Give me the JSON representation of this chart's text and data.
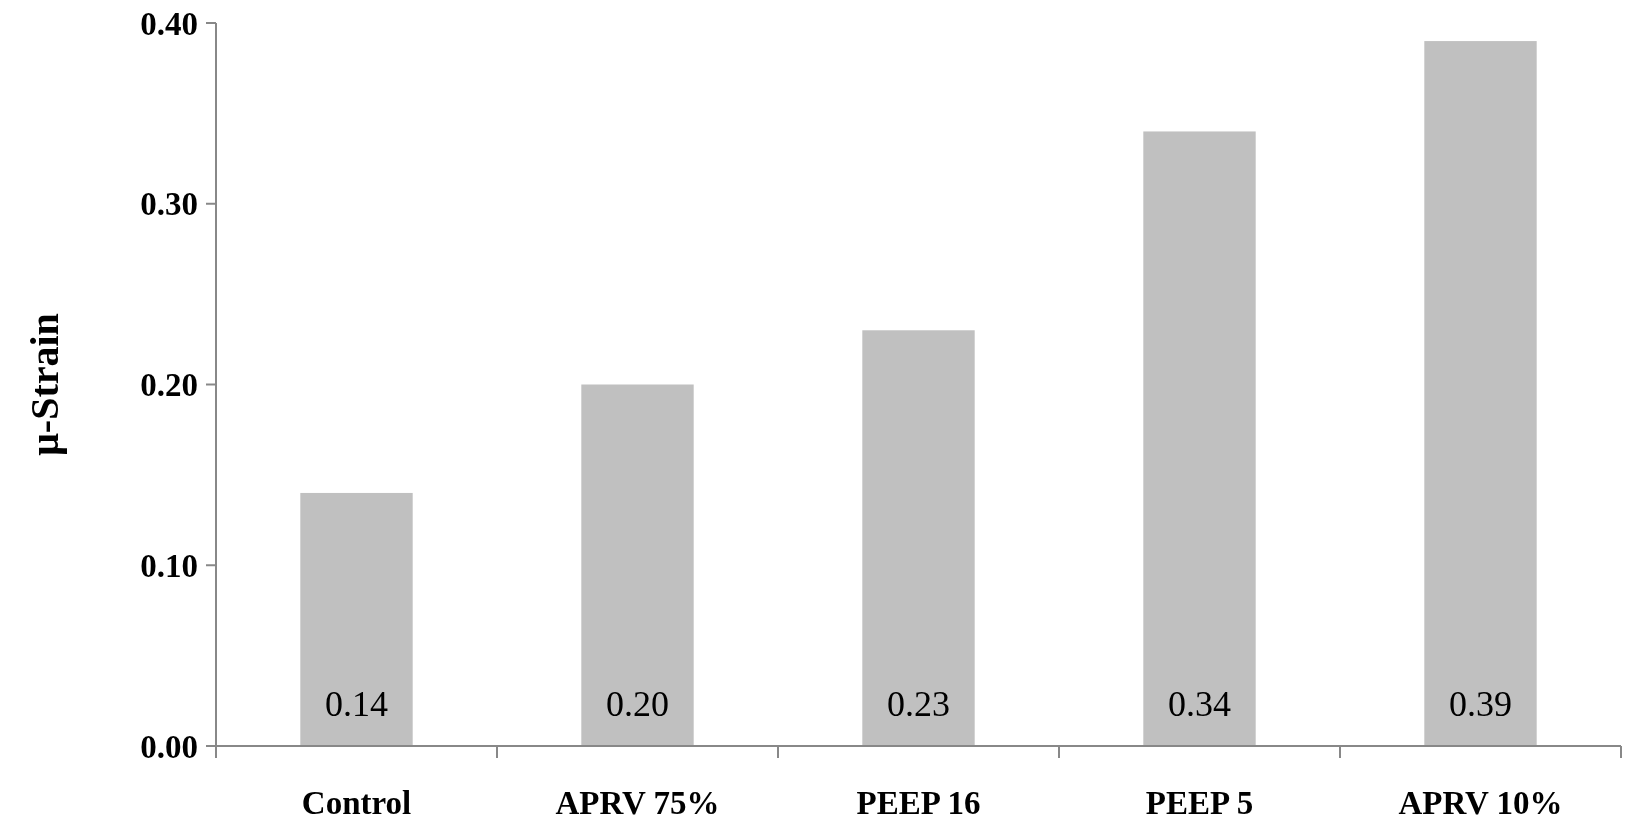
{
  "chart_data": {
    "type": "bar",
    "ylabel": "μ-Strain",
    "categories": [
      "Control",
      "APRV 75%",
      "PEEP 16",
      "PEEP 5",
      "APRV 10%"
    ],
    "values": [
      0.14,
      0.2,
      0.23,
      0.34,
      0.39
    ],
    "value_labels": [
      "0.14",
      "0.20",
      "0.23",
      "0.34",
      "0.39"
    ],
    "color": "#c0c0c0",
    "ylim": [
      0,
      0.4
    ],
    "yticks": [
      {
        "value": 0,
        "label": "0.00"
      },
      {
        "value": 0.1,
        "label": "0.10"
      },
      {
        "value": 0.2,
        "label": "0.20"
      },
      {
        "value": 0.3,
        "label": "0.30"
      },
      {
        "value": 0.4,
        "label": "0.40"
      }
    ],
    "grid": false
  }
}
